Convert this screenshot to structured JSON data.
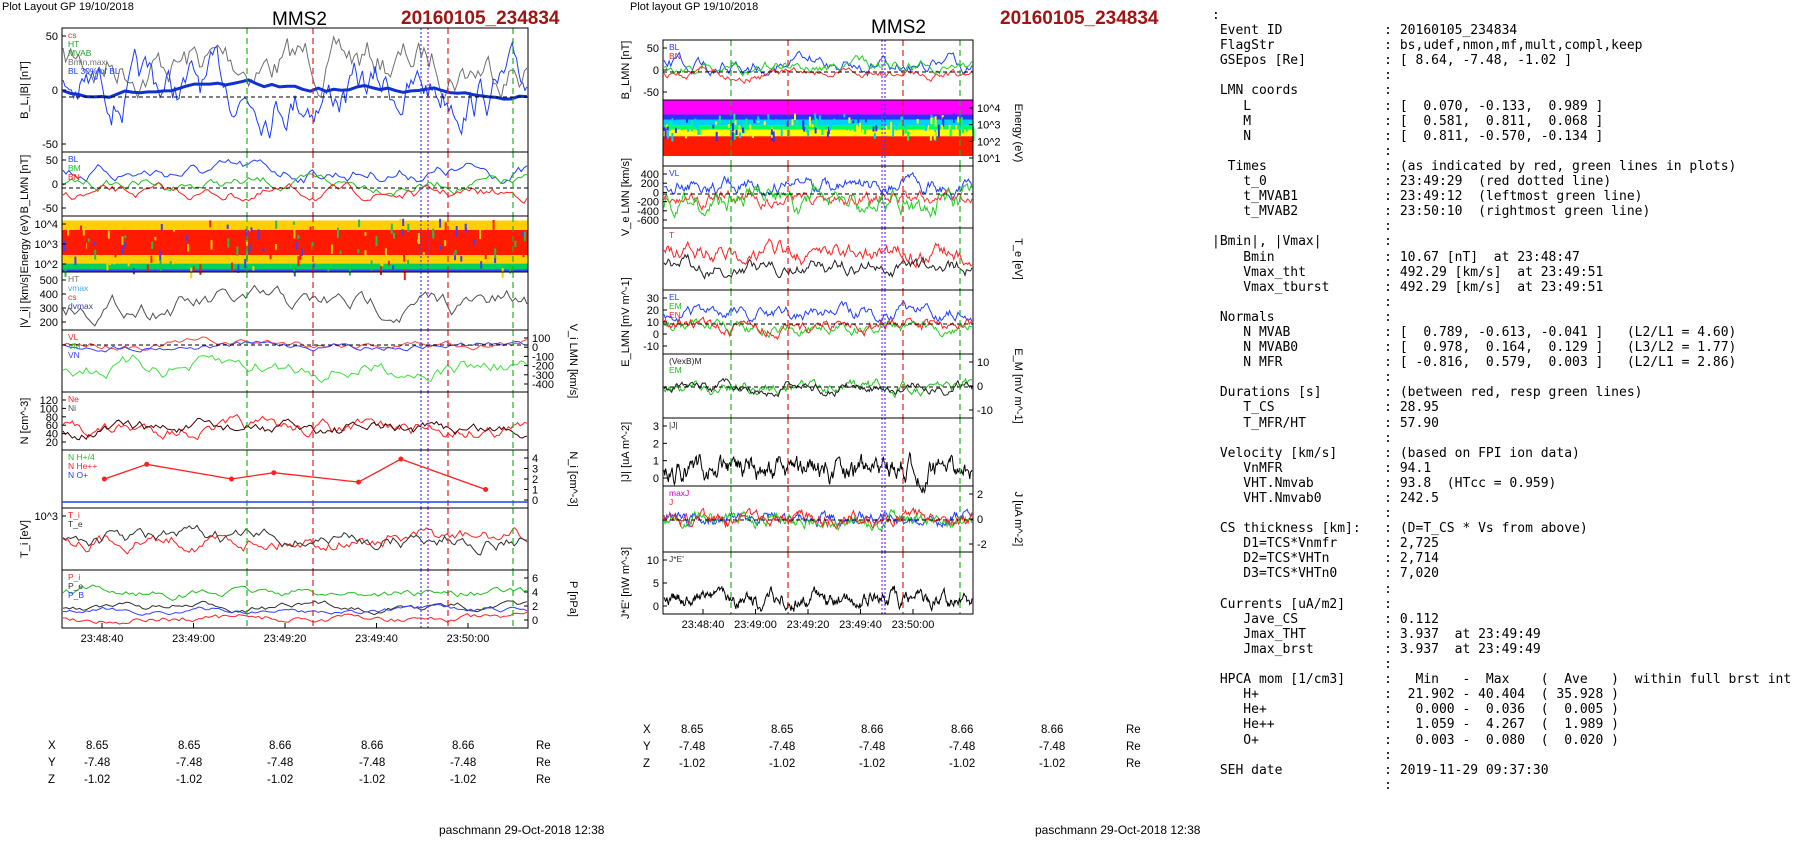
{
  "left_plot": {
    "header": "Plot Layout GP 19/10/2018",
    "spacecraft": "MMS2",
    "event": "20160105_234834",
    "footer": "paschmann 29-Oct-2018 12:38",
    "time_ticks": [
      "23:48:40",
      "23:49:00",
      "23:49:20",
      "23:49:40",
      "23:50:00"
    ],
    "pos_labels": [
      "X",
      "Y",
      "Z"
    ],
    "pos_x": [
      "8.65",
      "8.65",
      "8.66",
      "8.66",
      "8.66"
    ],
    "pos_y": [
      "-7.48",
      "-7.48",
      "-7.48",
      "-7.48",
      "-7.48"
    ],
    "pos_z": [
      "-1.02",
      "-1.02",
      "-1.02",
      "-1.02",
      "-1.02"
    ],
    "pos_unit": "Re"
  },
  "mid_plot": {
    "header": "Plot layout GP 19/10/2018",
    "spacecraft": "MMS2",
    "event": "20160105_234834",
    "footer": "paschmann 29-Oct-2018 12:38",
    "time_ticks": [
      "23:48:40",
      "23:49:00",
      "23:49:20",
      "23:49:40",
      "23:50:00"
    ],
    "pos_labels": [
      "X",
      "Y",
      "Z"
    ],
    "pos_x": [
      "8.65",
      "8.65",
      "8.66",
      "8.66",
      "8.66"
    ],
    "pos_y": [
      "-7.48",
      "-7.48",
      "-7.48",
      "-7.48",
      "-7.48"
    ],
    "pos_z": [
      "-1.02",
      "-1.02",
      "-1.02",
      "-1.02",
      "-1.02"
    ],
    "pos_unit": "Re"
  },
  "chart_data": [
    {
      "type": "line",
      "panel": "left-1",
      "ylabel": "B_L,|B| [nT]",
      "ylim": [
        -60,
        80
      ],
      "yticks": [
        "50",
        "0",
        "-50"
      ],
      "legend": [
        "cs",
        "HT",
        "MVAB",
        "Bmin,max",
        "BL 30% of BL"
      ]
    },
    {
      "type": "line",
      "panel": "left-2",
      "ylabel": "B_LMN [nT]",
      "yticks": [
        "50",
        "0",
        "-50"
      ],
      "legend": [
        "BL",
        "BM",
        "BN"
      ]
    },
    {
      "type": "heatmap",
      "panel": "left-3",
      "ylabel": "Energy (eV)",
      "yticks": [
        "10^4",
        "10^3",
        "10^2"
      ]
    },
    {
      "type": "line",
      "panel": "left-4",
      "ylabel": "|V_i| [km/s]",
      "ylim": [
        150,
        500
      ],
      "yticks": [
        "500",
        "400",
        "300",
        "200"
      ],
      "legend": [
        "HT",
        "vmax",
        "cs",
        "dvmax"
      ]
    },
    {
      "type": "line",
      "panel": "left-5",
      "ylabel": "V_i LMN [km/s]",
      "yticks": [
        "100",
        "0",
        "-100",
        "-200",
        "-300",
        "-400"
      ],
      "legend": [
        "VL",
        "VM",
        "VN"
      ]
    },
    {
      "type": "line",
      "panel": "left-6",
      "ylabel": "N [cm^-3]",
      "yticks": [
        "120",
        "100",
        "80",
        "60",
        "40",
        "20"
      ],
      "legend": [
        "Ne",
        "Ni"
      ]
    },
    {
      "type": "line",
      "panel": "left-7",
      "ylabel": "N_i [cm^-3]",
      "yticks": [
        "4",
        "3",
        "2",
        "1",
        "0"
      ],
      "legend": [
        "N H+/4",
        "N He++",
        "N O+"
      ],
      "x": [
        23.48,
        23.49,
        23.51,
        23.52,
        23.54,
        23.55,
        23.57
      ],
      "values": [
        2.0,
        3.4,
        2.0,
        2.6,
        1.7,
        3.9,
        1.0
      ]
    },
    {
      "type": "line",
      "panel": "left-8",
      "ylabel": "T_i [eV]",
      "yticks": [
        "10^3"
      ],
      "legend": [
        "T_i",
        "T_e"
      ]
    },
    {
      "type": "line",
      "panel": "left-9",
      "ylabel": "P [nPa]",
      "yticks": [
        "6",
        "4",
        "2",
        "0"
      ],
      "legend": [
        "P_i",
        "P_e",
        "P_B"
      ]
    },
    {
      "type": "line",
      "panel": "mid-1",
      "ylabel": "B_LMN [nT]",
      "yticks": [
        "50",
        "0",
        "-50"
      ],
      "legend": [
        "BL",
        "BN"
      ]
    },
    {
      "type": "heatmap",
      "panel": "mid-2",
      "ylabel": "Energy (eV)",
      "yticks": [
        "10^4",
        "10^3",
        "10^2",
        "10^1"
      ]
    },
    {
      "type": "line",
      "panel": "mid-3",
      "ylabel": "V_e LMN [km/s]",
      "yticks": [
        "400",
        "200",
        "0",
        "-200",
        "-400",
        "-600"
      ],
      "legend": [
        "VL"
      ]
    },
    {
      "type": "line",
      "panel": "mid-4",
      "ylabel": "T_e [eV]",
      "yticks": [],
      "legend": [
        "T"
      ]
    },
    {
      "type": "line",
      "panel": "mid-5",
      "ylabel": "E_LMN [mV m^-1]",
      "yticks": [
        "30",
        "20",
        "10",
        "0",
        "-10"
      ],
      "legend": [
        "EL",
        "EM",
        "EN"
      ]
    },
    {
      "type": "line",
      "panel": "mid-6",
      "ylabel": "E_M [mV m^-1]",
      "yticks": [
        "10",
        "0",
        "-10"
      ],
      "legend": [
        "(VexB)M",
        "EM"
      ]
    },
    {
      "type": "line",
      "panel": "mid-7",
      "ylabel": "|J| [uA m^-2]",
      "yticks": [
        "3",
        "2",
        "1",
        "0"
      ],
      "legend": [
        "|J|"
      ]
    },
    {
      "type": "line",
      "panel": "mid-8",
      "ylabel": "J [uA m^-2]",
      "yticks": [
        "2",
        "0",
        "-2"
      ],
      "legend": [
        "maxJ",
        "J"
      ]
    },
    {
      "type": "line",
      "panel": "mid-9",
      "ylabel": "J*E' [nW m^-3]",
      "yticks": [
        "10",
        "5",
        "0"
      ],
      "legend": [
        "J*E'"
      ]
    }
  ],
  "info_text": ":\n Event ID             : 20160105_234834\n FlagStr              : bs,udef,nmon,mf,mult,compl,keep\n GSEpos [Re]          : [ 8.64, -7.48, -1.02 ]\n                      :\n LMN coords           :\n    L                 : [  0.070, -0.133,  0.989 ]\n    M                 : [  0.581,  0.811,  0.068 ]\n    N                 : [  0.811, -0.570, -0.134 ]\n                      :\n  Times               : (as indicated by red, green lines in plots)\n    t_0               : 23:49:29  (red dotted line)\n    t_MVAB1           : 23:49:12  (leftmost green line)\n    t_MVAB2           : 23:50:10  (rightmost green line)\n                      :\n|Bmin|, |Vmax|        :\n    Bmin              : 10.67 [nT]  at 23:48:47\n    Vmax_tht          : 492.29 [km/s]  at 23:49:51\n    Vmax_tburst       : 492.29 [km/s]  at 23:49:51\n                      :\n Normals              :\n    N MVAB            : [  0.789, -0.613, -0.041 ]   (L2/L1 = 4.60)\n    N MVAB0           : [  0.978,  0.164,  0.129 ]   (L3/L2 = 1.77)\n    N MFR             : [ -0.816,  0.579,  0.003 ]   (L2/L1 = 2.86)\n                      :\n Durations [s]        : (between red, resp green lines)\n    T_CS              : 28.95\n    T_MFR/HT          : 57.90\n                      :\n Velocity [km/s]      : (based on FPI ion data)\n    VnMFR             : 94.1\n    VHT.Nmvab         : 93.8  (HTcc = 0.959)\n    VHT.Nmvab0        : 242.5\n                      :\n CS thickness [km]:   : (D=T_CS * Vs from above)\n    D1=TCS*Vnmfr      : 2,725\n    D2=TCS*VHTn       : 2,714\n    D3=TCS*VHTn0      : 7,020\n                      :\n Currents [uA/m2]     :\n    Jave_CS           : 0.112\n    Jmax_THT          : 3.937  at 23:49:49\n    Jmax_brst         : 3.937  at 23:49:49\n                      :\n HPCA mom [1/cm3]     :   Min   -  Max    (  Ave   )  within full brst int\n    H+                :  21.902 - 40.404  ( 35.928 )\n    He+               :   0.000 -  0.036  (  0.005 )\n    He++              :   1.059 -  4.267  (  1.989 )\n    O+                :   0.003 -  0.080  (  0.020 )\n                      :\n SEH date             : 2019-11-29 09:37:30\n                      :"
}
